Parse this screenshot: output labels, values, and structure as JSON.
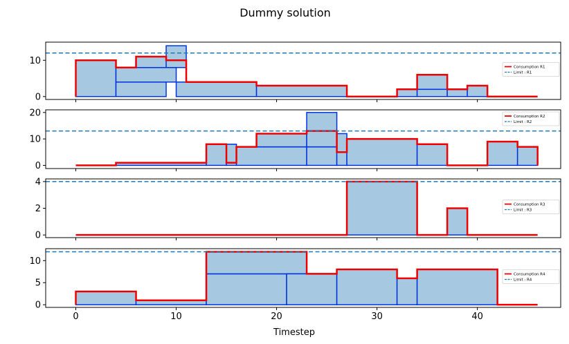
{
  "figure": {
    "title": "Dummy solution",
    "xlabel": "Timestep"
  },
  "colors": {
    "task_fill": "#a6c8e0",
    "task_edge": "#0033dd",
    "consumption": "#ee0000",
    "limit": "#1f77b4"
  },
  "chart_data": [
    {
      "type": "area",
      "xlim": [
        -3,
        48.3
      ],
      "ylim": [
        -0.8,
        15
      ],
      "yticks": [
        0,
        10
      ],
      "xticks": [
        0,
        10,
        20,
        30,
        40
      ],
      "limit": 12,
      "tasks": [
        {
          "x0": 0,
          "x1": 4,
          "y0": 0,
          "y1": 10
        },
        {
          "x0": 4,
          "x1": 9,
          "y0": 0,
          "y1": 4
        },
        {
          "x0": 4,
          "x1": 10,
          "y0": 4,
          "y1": 8
        },
        {
          "x0": 6,
          "x1": 10,
          "y0": 8,
          "y1": 11
        },
        {
          "x0": 9,
          "x1": 11,
          "y0": 8,
          "y1": 14
        },
        {
          "x0": 10,
          "x1": 18,
          "y0": 0,
          "y1": 4
        },
        {
          "x0": 18,
          "x1": 27,
          "y0": 0,
          "y1": 3
        },
        {
          "x0": 32,
          "x1": 34,
          "y0": 0,
          "y1": 2
        },
        {
          "x0": 34,
          "x1": 37,
          "y0": 0,
          "y1": 2
        },
        {
          "x0": 34,
          "x1": 37,
          "y0": 2,
          "y1": 6
        },
        {
          "x0": 37,
          "x1": 39,
          "y0": 0,
          "y1": 2
        },
        {
          "x0": 39,
          "x1": 41,
          "y0": 0,
          "y1": 3
        }
      ],
      "consumption": {
        "x": [
          0,
          4,
          6,
          9,
          10,
          11,
          18,
          27,
          32,
          34,
          37,
          39,
          41,
          46
        ],
        "y": [
          10,
          8,
          11,
          10,
          10,
          4,
          3,
          0,
          2,
          6,
          2,
          3,
          0,
          0
        ]
      },
      "legend": {
        "series": "Consumption R1",
        "limit": "Limit : R1",
        "placement": "right"
      }
    },
    {
      "type": "area",
      "xlim": [
        -3,
        48.3
      ],
      "ylim": [
        -1.2,
        21
      ],
      "yticks": [
        0,
        10,
        20
      ],
      "xticks": [
        0,
        10,
        20,
        30,
        40
      ],
      "limit": 13,
      "tasks": [
        {
          "x0": 4,
          "x1": 13,
          "y0": 0,
          "y1": 1
        },
        {
          "x0": 13,
          "x1": 15,
          "y0": 0,
          "y1": 8
        },
        {
          "x0": 15,
          "x1": 16,
          "y0": 0,
          "y1": 8
        },
        {
          "x0": 16,
          "x1": 23,
          "y0": 0,
          "y1": 7
        },
        {
          "x0": 18,
          "x1": 23,
          "y0": 7,
          "y1": 12
        },
        {
          "x0": 23,
          "x1": 26,
          "y0": 0,
          "y1": 7
        },
        {
          "x0": 23,
          "x1": 26,
          "y0": 7,
          "y1": 13
        },
        {
          "x0": 23,
          "x1": 26,
          "y0": 13,
          "y1": 20
        },
        {
          "x0": 26,
          "x1": 27,
          "y0": 0,
          "y1": 5
        },
        {
          "x0": 26,
          "x1": 27,
          "y0": 5,
          "y1": 12
        },
        {
          "x0": 27,
          "x1": 34,
          "y0": 0,
          "y1": 10
        },
        {
          "x0": 34,
          "x1": 37,
          "y0": 0,
          "y1": 8
        },
        {
          "x0": 41,
          "x1": 44,
          "y0": 0,
          "y1": 9
        },
        {
          "x0": 44,
          "x1": 46,
          "y0": 0,
          "y1": 7
        }
      ],
      "consumption": {
        "x": [
          0,
          4,
          13,
          15,
          16,
          18,
          23,
          26,
          27,
          34,
          37,
          41,
          44,
          46
        ],
        "y": [
          0,
          1,
          8,
          1,
          7,
          12,
          13,
          5,
          10,
          8,
          0,
          9,
          7,
          0
        ]
      },
      "legend": {
        "series": "Consumption R2",
        "limit": "Limit : R2",
        "placement": "top-right"
      }
    },
    {
      "type": "area",
      "xlim": [
        -3,
        48.3
      ],
      "ylim": [
        -0.2,
        4.2
      ],
      "yticks": [
        0,
        2,
        4
      ],
      "xticks": [
        0,
        10,
        20,
        30,
        40
      ],
      "limit": 4,
      "tasks": [
        {
          "x0": 27,
          "x1": 34,
          "y0": 0,
          "y1": 4
        },
        {
          "x0": 37,
          "x1": 39,
          "y0": 0,
          "y1": 2
        }
      ],
      "consumption": {
        "x": [
          0,
          27,
          34,
          37,
          39,
          46
        ],
        "y": [
          0,
          4,
          0,
          2,
          0,
          0
        ]
      },
      "legend": {
        "series": "Consumption R3",
        "limit": "Limit : R3",
        "placement": "right"
      }
    },
    {
      "type": "area",
      "xlim": [
        -3,
        48.3
      ],
      "ylim": [
        -0.6,
        12.7
      ],
      "yticks": [
        0,
        5,
        10
      ],
      "xticks": [
        0,
        10,
        20,
        30,
        40
      ],
      "limit": 12,
      "tasks": [
        {
          "x0": 0,
          "x1": 6,
          "y0": 0,
          "y1": 3
        },
        {
          "x0": 6,
          "x1": 13,
          "y0": 0,
          "y1": 1
        },
        {
          "x0": 13,
          "x1": 21,
          "y0": 0,
          "y1": 7
        },
        {
          "x0": 13,
          "x1": 23,
          "y0": 7,
          "y1": 12
        },
        {
          "x0": 21,
          "x1": 26,
          "y0": 0,
          "y1": 7
        },
        {
          "x0": 26,
          "x1": 32,
          "y0": 0,
          "y1": 8
        },
        {
          "x0": 32,
          "x1": 34,
          "y0": 0,
          "y1": 6
        },
        {
          "x0": 34,
          "x1": 42,
          "y0": 0,
          "y1": 8
        }
      ],
      "consumption": {
        "x": [
          0,
          6,
          13,
          23,
          26,
          32,
          34,
          42,
          46
        ],
        "y": [
          3,
          1,
          12,
          7,
          8,
          6,
          8,
          0,
          0
        ]
      },
      "legend": {
        "series": "Consumption R4",
        "limit": "Limit : R4",
        "placement": "right"
      }
    }
  ]
}
